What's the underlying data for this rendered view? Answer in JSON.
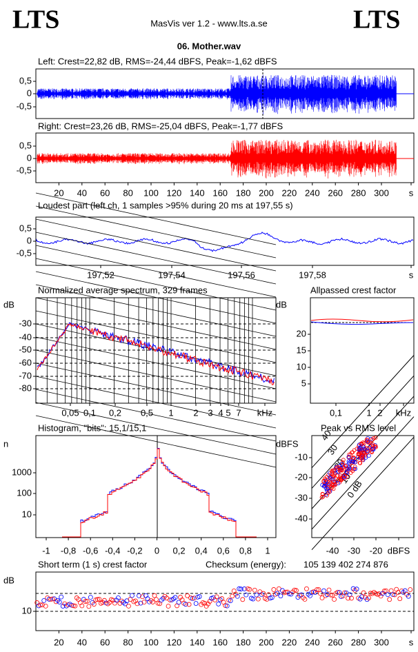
{
  "header": {
    "logo_left": "LTS",
    "app": "MasVis ver 1.2 - www.lts.a.se",
    "logo_right": "LTS",
    "file": "06. Mother.wav"
  },
  "panels": [
    {
      "title": "Left: Crest=22,82 dB, RMS=-24,44 dBFS, Peak=-1,62 dBFS",
      "yticks": [
        "0,5",
        "0",
        "-0,5"
      ]
    },
    {
      "title": "Right: Crest=23,26 dB, RMS=-25,04 dBFS, Peak=-1,77 dBFS",
      "yticks": [
        "0,5",
        "0",
        "-0,5"
      ],
      "xticks": [
        "20",
        "40",
        "60",
        "80",
        "100",
        "120",
        "140",
        "160",
        "180",
        "200",
        "220",
        "240",
        "260",
        "280",
        "300",
        "s"
      ]
    },
    {
      "title": "Loudest part (left  ch, 1 samples >95% during 20 ms at 197,55 s)",
      "yticks": [
        "0,5",
        "0",
        "-0,5"
      ],
      "xticks": [
        "197,52",
        "197,54",
        "197,56",
        "197,58",
        "s"
      ]
    },
    {
      "title": "Normalized average spectrum, 329 frames",
      "yunit": "dB",
      "yticks": [
        "-30",
        "-40",
        "-50",
        "-60",
        "-70",
        "-80"
      ],
      "xticks": [
        "0,05",
        "0,1",
        "0,2",
        "0,5",
        "1",
        "2",
        "3",
        "4",
        "5",
        "7",
        "kHz"
      ]
    },
    {
      "title": "Allpassed crest factor",
      "yunit": "dB",
      "yticks": [
        "20",
        "15",
        "10",
        "5"
      ],
      "xticks": [
        "0,1",
        "1",
        "2",
        "kHz"
      ]
    },
    {
      "title": "Histogram, \"bits\": 15,1/15,1",
      "yunit": "n",
      "yticks": [
        "1000",
        "100",
        "10"
      ],
      "xticks": [
        "-1",
        "-0,8",
        "-0,6",
        "-0,4",
        "-0,2",
        "0",
        "0,2",
        "0,4",
        "0,6",
        "0,8",
        "1"
      ]
    },
    {
      "title": "Peak vs RMS level",
      "yunit": "dBFS",
      "yticks": [
        "-10",
        "-20",
        "-30",
        "-40"
      ],
      "xticks": [
        "-40",
        "-30",
        "-20",
        "dBFS"
      ],
      "lines": [
        "40",
        "30",
        "20",
        "10",
        "0 dB"
      ]
    },
    {
      "title": "Short term (1 s) crest factor",
      "yunit": "dB",
      "yticks": [
        "10"
      ],
      "xticks": [
        "20",
        "40",
        "60",
        "80",
        "100",
        "120",
        "140",
        "160",
        "180",
        "200",
        "220",
        "240",
        "260",
        "280",
        "300",
        "s"
      ],
      "checksum_label": "Checksum (energy):",
      "checksum": "105 139 402 274 876"
    }
  ]
}
